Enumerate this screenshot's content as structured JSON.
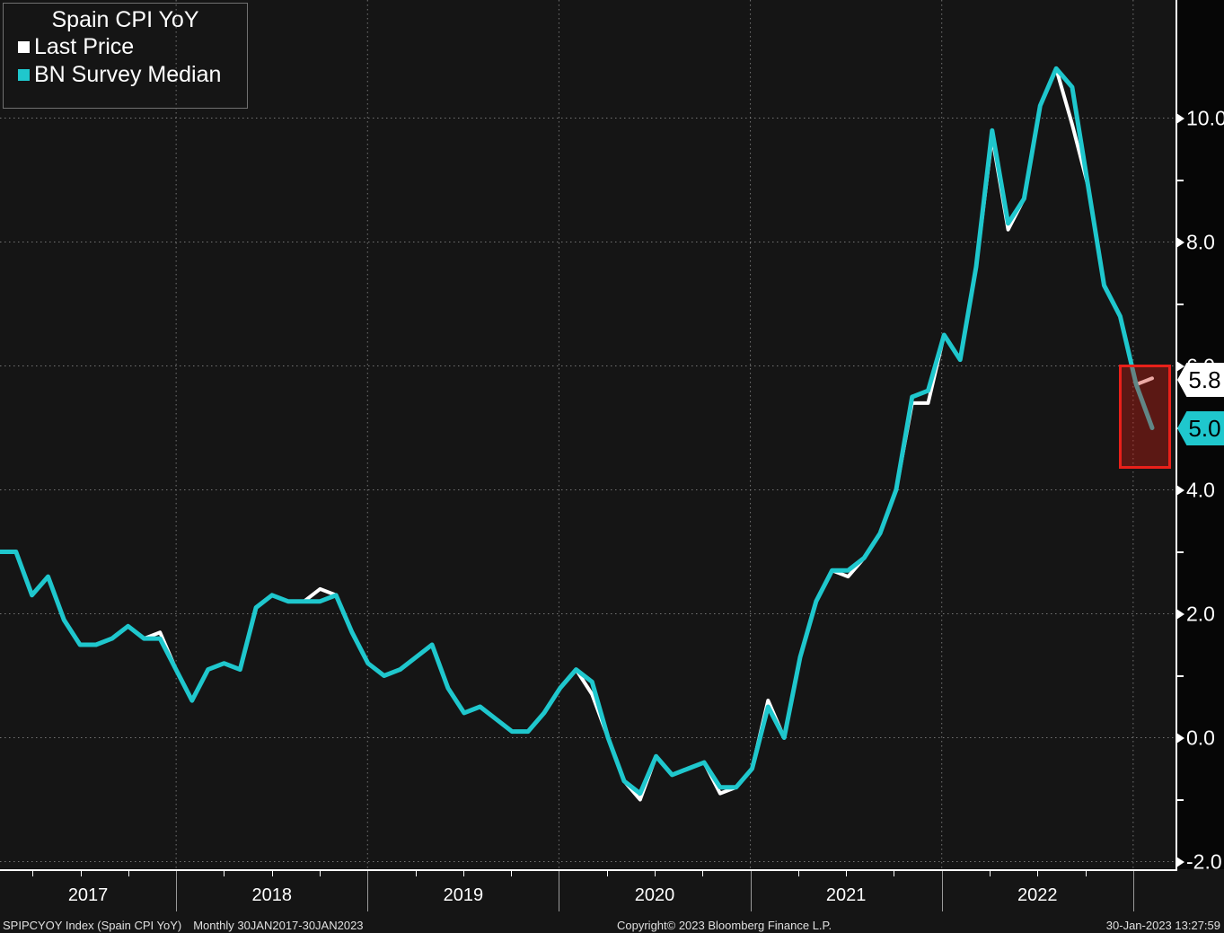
{
  "legend": {
    "title": "Spain CPI YoY",
    "items": [
      {
        "label": "Last Price",
        "color": "#ffffff"
      },
      {
        "label": "BN Survey Median",
        "color": "#1fc7cd"
      }
    ]
  },
  "y_axis": {
    "major_ticks": [
      {
        "label": "10.0",
        "value": 10.0
      },
      {
        "label": "8.0",
        "value": 8.0
      },
      {
        "label": "6.0",
        "value": 6.0
      },
      {
        "label": "4.0",
        "value": 4.0
      },
      {
        "label": "2.0",
        "value": 2.0
      },
      {
        "label": "0.0",
        "value": 0.0
      },
      {
        "label": "-2.0",
        "value": -2.0
      }
    ],
    "minor_tick_values": [
      9,
      7,
      5,
      3,
      1,
      -1
    ]
  },
  "x_axis": {
    "year_labels": [
      "2017",
      "2018",
      "2019",
      "2020",
      "2021",
      "2022"
    ]
  },
  "price_tags": {
    "last": {
      "value": "5.8",
      "bg": "#ffffff",
      "text_color": "#000000"
    },
    "survey": {
      "value": "5.0",
      "bg": "#1fc7cd",
      "text_color": "#000000"
    }
  },
  "status_bar": {
    "left_ticker": "SPIPCYOY Index (Spain CPI YoY)",
    "left_period": "Monthly 30JAN2017-30JAN2023",
    "center": "Copyright© 2023 Bloomberg Finance L.P.",
    "right": "30-Jan-2023 13:27:59"
  },
  "colors": {
    "background": "#151515",
    "axis": "#ffffff",
    "gridline": "#8c8c8c",
    "highlight_border": "#e9201a",
    "highlight_fill": "rgba(205,28,18,0.38)"
  },
  "chart_data": {
    "type": "line",
    "title": "Spain CPI YoY",
    "frequency": "Monthly",
    "x_start": "30JAN2017",
    "x_end": "30JAN2023",
    "months_per_point": 1,
    "x_year_ticks": [
      "2017",
      "2018",
      "2019",
      "2020",
      "2021",
      "2022"
    ],
    "ylim": [
      -2.1,
      11.9
    ],
    "y_major_ticks": [
      10.0,
      8.0,
      6.0,
      4.0,
      2.0,
      0.0,
      -2.0
    ],
    "grid": true,
    "legend_position": "top-left",
    "series": [
      {
        "name": "Last Price",
        "color": "#ffffff",
        "last_value": 5.8,
        "values": [
          3.0,
          3.0,
          2.3,
          2.6,
          1.9,
          1.5,
          1.5,
          1.6,
          1.8,
          1.6,
          1.7,
          1.1,
          0.6,
          1.1,
          1.2,
          1.1,
          2.1,
          2.3,
          2.2,
          2.2,
          2.4,
          2.3,
          1.7,
          1.2,
          1.0,
          1.1,
          1.3,
          1.5,
          0.8,
          0.4,
          0.5,
          0.3,
          0.1,
          0.1,
          0.4,
          0.8,
          1.1,
          0.7,
          0.0,
          -0.7,
          -1.0,
          -0.3,
          -0.6,
          -0.5,
          -0.4,
          -0.9,
          -0.8,
          -0.5,
          0.6,
          0.0,
          1.3,
          2.2,
          2.7,
          2.6,
          2.9,
          3.3,
          4.0,
          5.4,
          5.4,
          6.5,
          6.1,
          7.6,
          9.7,
          8.2,
          8.7,
          10.2,
          10.8,
          9.9,
          8.9,
          7.3,
          6.8,
          5.7,
          5.8
        ]
      },
      {
        "name": "BN Survey Median",
        "color": "#1fc7cd",
        "last_value": 5.0,
        "values": [
          3.0,
          3.0,
          2.3,
          2.6,
          1.9,
          1.5,
          1.5,
          1.6,
          1.8,
          1.6,
          1.6,
          1.1,
          0.6,
          1.1,
          1.2,
          1.1,
          2.1,
          2.3,
          2.2,
          2.2,
          2.2,
          2.3,
          1.7,
          1.2,
          1.0,
          1.1,
          1.3,
          1.5,
          0.8,
          0.4,
          0.5,
          0.3,
          0.1,
          0.1,
          0.4,
          0.8,
          1.1,
          0.9,
          0.0,
          -0.7,
          -0.9,
          -0.3,
          -0.6,
          -0.5,
          -0.4,
          -0.8,
          -0.8,
          -0.5,
          0.5,
          0.0,
          1.3,
          2.2,
          2.7,
          2.7,
          2.9,
          3.3,
          4.0,
          5.5,
          5.6,
          6.5,
          6.1,
          7.6,
          9.8,
          8.3,
          8.7,
          10.2,
          10.8,
          10.5,
          8.9,
          7.3,
          6.8,
          5.7,
          5.0
        ]
      }
    ],
    "annotations": {
      "highlight_box": "Red box around Jan-2023 release: Last Price 5.8 vs BN Survey Median 5.0"
    }
  }
}
